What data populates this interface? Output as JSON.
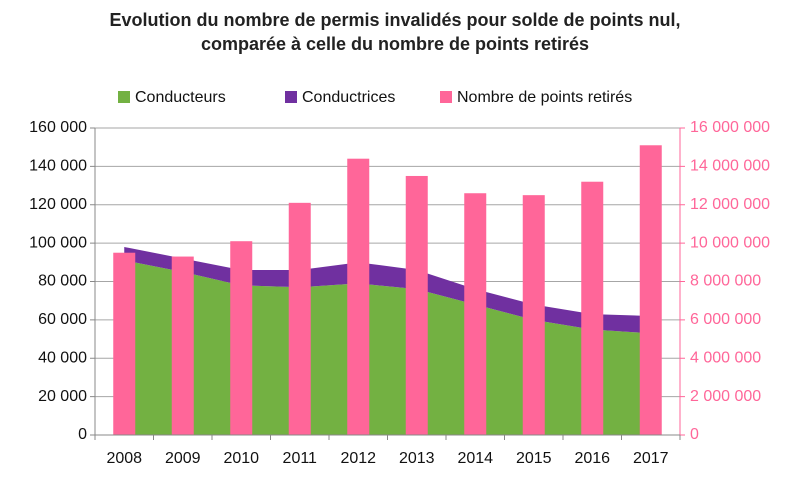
{
  "chart_data": {
    "type": "combo",
    "title": "Evolution du nombre de permis invalidés pour solde de points nul, comparée à celle du nombre de points retirés",
    "categories": [
      "2008",
      "2009",
      "2010",
      "2011",
      "2012",
      "2013",
      "2014",
      "2015",
      "2016",
      "2017"
    ],
    "series": [
      {
        "name": "Conducteurs",
        "type": "area",
        "color": "#73b142",
        "values": [
          91000,
          85000,
          78000,
          77000,
          79000,
          76000,
          68000,
          60000,
          55000,
          53000
        ]
      },
      {
        "name": "Conductrices",
        "type": "area",
        "color": "#7030a0",
        "values": [
          7000,
          7000,
          8000,
          9000,
          11000,
          10000,
          8000,
          8000,
          8000,
          9000
        ]
      },
      {
        "name": "Nombre de points retirés",
        "type": "bar",
        "axis": "y2",
        "color": "#ff6699",
        "values": [
          9500000,
          9300000,
          10100000,
          12100000,
          14400000,
          13500000,
          12600000,
          12500000,
          13200000,
          15100000
        ]
      }
    ],
    "stacked": true,
    "ylim": [
      0,
      160000
    ],
    "yticks": [
      0,
      {
        "value": 20000,
        "label": "20 000"
      },
      {
        "value": 40000,
        "label": "40 000"
      },
      {
        "value": 60000,
        "label": "60 000"
      },
      {
        "value": 80000,
        "label": "80 000"
      },
      {
        "value": 100000,
        "label": "100 000"
      },
      {
        "value": 120000,
        "label": "120 000"
      },
      {
        "value": 140000,
        "label": "140 000"
      },
      {
        "value": 160000,
        "label": "160 000"
      }
    ],
    "y2lim": [
      0,
      16000000
    ],
    "y2ticks": [
      0,
      {
        "value": 2000000,
        "label": "2 000 000"
      },
      {
        "value": 4000000,
        "label": "4 000 000"
      },
      {
        "value": 6000000,
        "label": "6 000 000"
      },
      {
        "value": 8000000,
        "label": "8 000 000"
      },
      {
        "value": 10000000,
        "label": "10 000 000"
      },
      {
        "value": 12000000,
        "label": "12 000 000"
      },
      {
        "value": 14000000,
        "label": "14 000 000"
      },
      {
        "value": 16000000,
        "label": "16 000 000"
      }
    ],
    "y2color": "#ff6699",
    "grid": true,
    "legend": "top"
  }
}
